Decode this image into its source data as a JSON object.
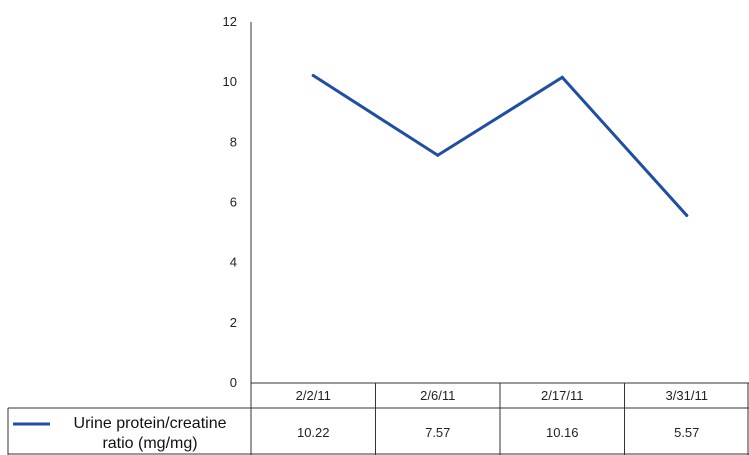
{
  "chart_data": {
    "type": "line",
    "categories": [
      "2/2/11",
      "2/6/11",
      "2/17/11",
      "3/31/11"
    ],
    "series": [
      {
        "name": "Urine protein/creatine ratio (mg/mg)",
        "values": [
          10.22,
          7.57,
          10.16,
          5.57
        ],
        "color": "#1f4ea3"
      }
    ],
    "yticks": [
      "0",
      "2",
      "4",
      "6",
      "8",
      "10",
      "12"
    ],
    "ylim": [
      0,
      12
    ],
    "grid": false,
    "legend_placement": "bottom-left data table",
    "table": {
      "row_label_lines": [
        "Urine protein/creatine",
        "ratio (mg/mg)"
      ],
      "cells": [
        "10.22",
        "7.57",
        "10.16",
        "5.57"
      ]
    }
  }
}
